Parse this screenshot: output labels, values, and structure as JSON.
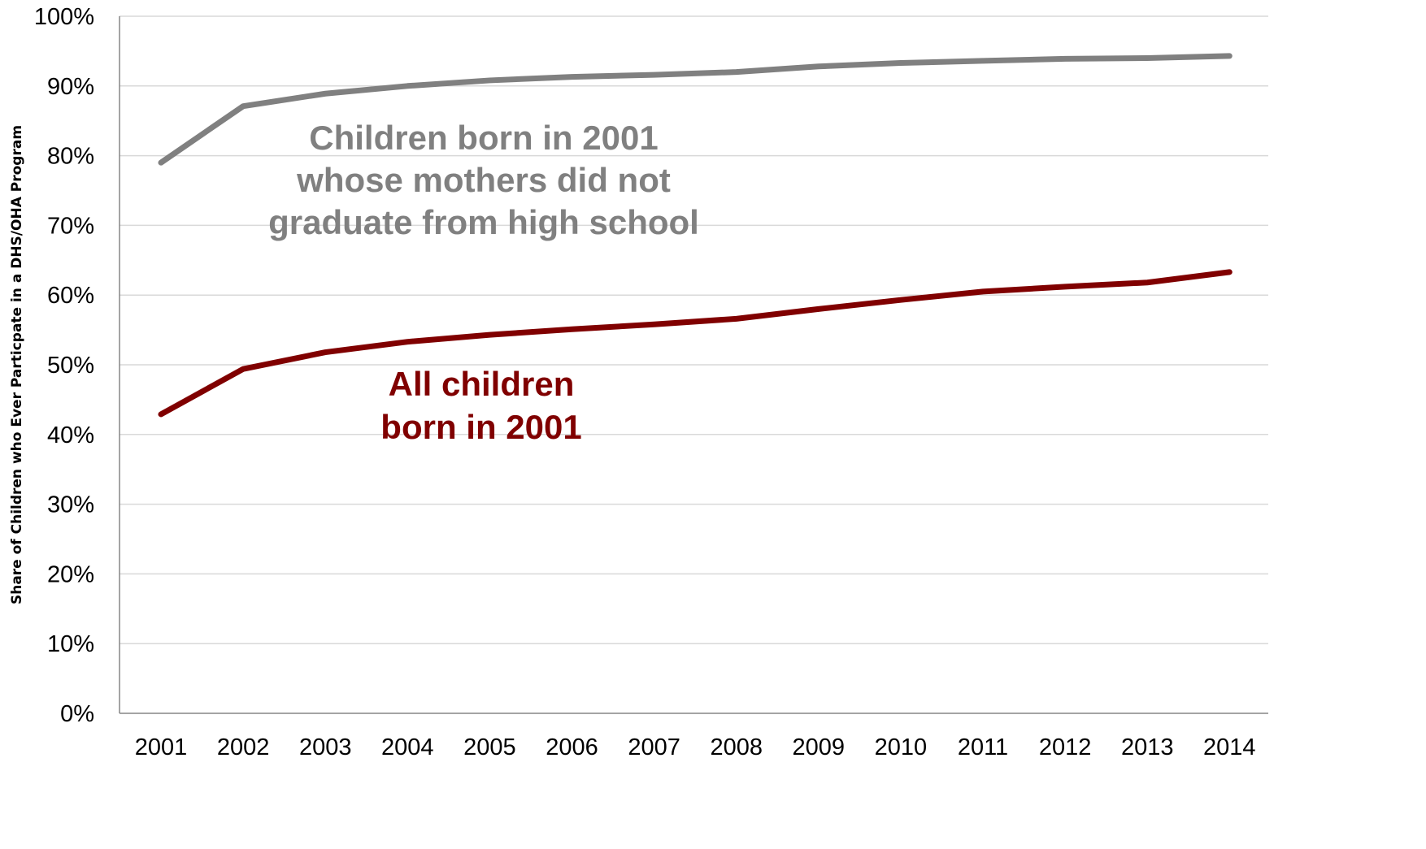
{
  "chart_data": {
    "type": "line",
    "x": [
      "2001",
      "2002",
      "2003",
      "2004",
      "2005",
      "2006",
      "2007",
      "2008",
      "2009",
      "2010",
      "2011",
      "2012",
      "2013",
      "2014"
    ],
    "series": [
      {
        "key": "hs",
        "annotation": [
          "Children born in 2001",
          "whose mothers did not",
          "graduate from high school"
        ],
        "color": "#808080",
        "values": [
          79.0,
          87.1,
          88.9,
          90.0,
          90.8,
          91.3,
          91.6,
          92.0,
          92.8,
          93.3,
          93.6,
          93.9,
          94.0,
          94.3
        ]
      },
      {
        "key": "all",
        "annotation": [
          "All children",
          "born in 2001"
        ],
        "color": "#800000",
        "values": [
          42.9,
          49.4,
          51.8,
          53.3,
          54.3,
          55.1,
          55.8,
          56.6,
          58.0,
          59.3,
          60.5,
          61.2,
          61.8,
          63.3
        ]
      }
    ],
    "ylabel": "Share of Children who Ever Particpate in a DHS/OHA Program",
    "ylim": [
      0,
      100
    ],
    "yticks": [
      "0%",
      "10%",
      "20%",
      "30%",
      "40%",
      "50%",
      "60%",
      "70%",
      "80%",
      "90%",
      "100%"
    ],
    "grid": true,
    "legend": "none (direct labels)"
  }
}
